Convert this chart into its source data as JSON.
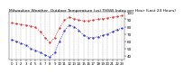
{
  "title": "Milwaukee Weather  Outdoor Temperature (vs) THSW Index per Hour (Last 24 Hours)",
  "hours": [
    0,
    1,
    2,
    3,
    4,
    5,
    6,
    7,
    8,
    9,
    10,
    11,
    12,
    13,
    14,
    15,
    16,
    17,
    18,
    19,
    20,
    21,
    22,
    23
  ],
  "temp": [
    85,
    84,
    83,
    82,
    81,
    79,
    73,
    65,
    58,
    65,
    78,
    89,
    93,
    91,
    89,
    88,
    88,
    89,
    90,
    91,
    92,
    93,
    94,
    95
  ],
  "thsw": [
    62,
    60,
    57,
    54,
    50,
    47,
    44,
    41,
    38,
    44,
    60,
    74,
    82,
    80,
    75,
    68,
    65,
    65,
    66,
    68,
    70,
    73,
    76,
    78
  ],
  "temp_color": "#dd0000",
  "thsw_color": "#0000cc",
  "bg_color": "#ffffff",
  "plot_bg_color": "#ffffff",
  "grid_color": "#888888",
  "ylim_min": 35,
  "ylim_max": 100,
  "ytick_values": [
    40,
    50,
    60,
    70,
    80,
    90,
    100
  ],
  "xticks": [
    0,
    1,
    2,
    3,
    4,
    5,
    6,
    7,
    8,
    9,
    10,
    11,
    12,
    13,
    14,
    15,
    16,
    17,
    18,
    19,
    20,
    21,
    22,
    23
  ],
  "ylabel_fontsize": 3.0,
  "xlabel_fontsize": 2.8,
  "title_fontsize": 3.2,
  "line_width": 0.6,
  "marker_size": 1.0
}
